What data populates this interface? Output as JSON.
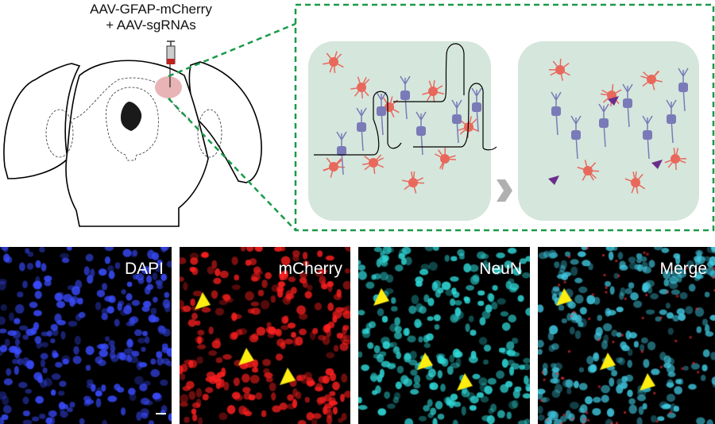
{
  "injection_label": {
    "line1": "AAV-GFAP-mCherry",
    "line2": "+ AAV-sgRNAs"
  },
  "colors": {
    "dashed_box": "#1a9a4a",
    "injection_site": "#e8b4b6",
    "astrocyte": "#e8685c",
    "neuron": "#7a7ab8",
    "panel_bg": "#d5e6dc",
    "arrowhead": "#6b2d8c",
    "chevron": "#b0b0b0"
  },
  "panels": [
    {
      "label": "DAPI",
      "color": "#3a4cff",
      "arrowheads": 0
    },
    {
      "label": "mCherry",
      "color": "#ff2020",
      "arrowheads": 3
    },
    {
      "label": "NeuN",
      "color": "#30d8d8",
      "arrowheads": 3
    },
    {
      "label": "Merge",
      "color": "#40c8e0",
      "arrowheads": 3
    }
  ]
}
